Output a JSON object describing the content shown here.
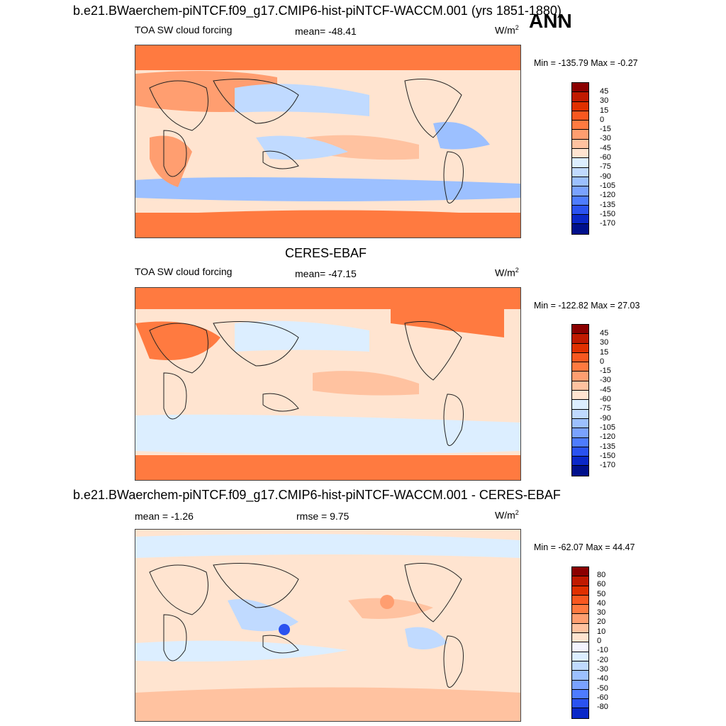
{
  "header": {
    "title": "b.e21.BWaerchem-piNTCF.f09_g17.CMIP6-hist-piNTCF-WACCM.001 (yrs 1851-1880)",
    "season": "ANN"
  },
  "panels": [
    {
      "title": "",
      "variable": "TOA SW cloud forcing",
      "stat": "mean= -48.41",
      "unit": "W/m",
      "unit_sup": "2",
      "minmax": "Min = -135.79 Max =  -0.27",
      "colorbar_labels": [
        "45",
        "30",
        "15",
        "0",
        "-15",
        "-30",
        "-45",
        "-60",
        "-75",
        "-90",
        "-105",
        "-120",
        "-135",
        "-150",
        "-170"
      ]
    },
    {
      "title": "CERES-EBAF",
      "variable": "TOA SW cloud forcing",
      "stat": "mean= -47.15",
      "unit": "W/m",
      "unit_sup": "2",
      "minmax": "Min = -122.82 Max =  27.03",
      "colorbar_labels": [
        "45",
        "30",
        "15",
        "0",
        "-15",
        "-30",
        "-45",
        "-60",
        "-75",
        "-90",
        "-105",
        "-120",
        "-135",
        "-150",
        "-170"
      ]
    },
    {
      "title": "b.e21.BWaerchem-piNTCF.f09_g17.CMIP6-hist-piNTCF-WACCM.001 - CERES-EBAF",
      "variable": "mean =  -1.26",
      "stat": "rmse =   9.75",
      "unit": "W/m",
      "unit_sup": "2",
      "minmax": "Min = -62.07 Max =  44.47",
      "colorbar_labels": [
        "80",
        "60",
        "50",
        "40",
        "30",
        "20",
        "10",
        "0",
        "-10",
        "-20",
        "-30",
        "-40",
        "-50",
        "-60",
        "-80"
      ]
    }
  ],
  "colors": {
    "abs_scale": [
      "#8b0000",
      "#c01a00",
      "#e03000",
      "#f85820",
      "#ff7a40",
      "#ff9e70",
      "#ffc2a0",
      "#ffe4d0",
      "#dceeff",
      "#c0daff",
      "#9cc0ff",
      "#7aa2ff",
      "#4e7cff",
      "#2a52f0",
      "#0a28c8",
      "#00108c"
    ],
    "diff_scale": [
      "#8b0000",
      "#c01a00",
      "#e03000",
      "#f85820",
      "#ff7a40",
      "#ff9e70",
      "#ffc2a0",
      "#ffe4d0",
      "#f4f4ff",
      "#dceeff",
      "#c0daff",
      "#9cc0ff",
      "#7aa2ff",
      "#4e7cff",
      "#2a52f0",
      "#0a28c8",
      "#00108c"
    ]
  }
}
